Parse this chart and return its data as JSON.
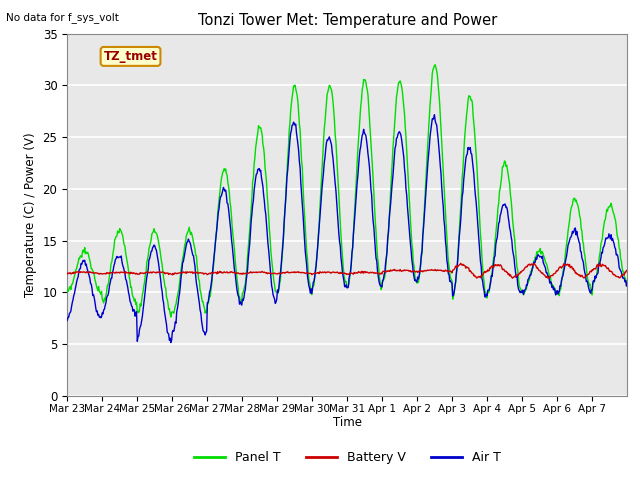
{
  "title": "Tonzi Tower Met: Temperature and Power",
  "xlabel": "Time",
  "ylabel": "Temperature (C) / Power (V)",
  "top_left_text": "No data for f_sys_volt",
  "legend_label_text": "TZ_tmet",
  "ylim": [
    0,
    35
  ],
  "yticks": [
    0,
    5,
    10,
    15,
    20,
    25,
    30,
    35
  ],
  "plot_bg_color": "#e8e8e8",
  "grid_color": "#ffffff",
  "line_green": "#00dd00",
  "line_red": "#cc0000",
  "line_blue": "#0000cc",
  "legend_box_color": "#ffffcc",
  "legend_box_edge": "#cc8800",
  "x_tick_labels": [
    "Mar 23",
    "Mar 24",
    "Mar 25",
    "Mar 26",
    "Mar 27",
    "Mar 28",
    "Mar 29",
    "Mar 30",
    "Mar 31",
    "Apr 1",
    "Apr 2",
    "Apr 3",
    "Apr 4",
    "Apr 5",
    "Apr 6",
    "Apr 7"
  ],
  "day_data": [
    [
      0,
      10,
      14,
      7.5,
      13.0
    ],
    [
      1,
      9,
      16,
      8.0,
      13.5
    ],
    [
      2,
      8,
      16,
      5.5,
      14.5
    ],
    [
      3,
      8,
      16,
      6.0,
      15.0
    ],
    [
      4,
      9,
      22,
      9.0,
      20.0
    ],
    [
      5,
      10,
      26,
      9.0,
      22.0
    ],
    [
      6,
      10,
      30,
      10.0,
      26.5
    ],
    [
      7,
      10.5,
      30,
      10.5,
      25.0
    ],
    [
      8,
      10.5,
      30.5,
      10.5,
      25.5
    ],
    [
      9,
      11,
      30.5,
      11.0,
      25.5
    ],
    [
      10,
      11,
      32,
      11.0,
      27.0
    ],
    [
      11,
      9.5,
      29,
      9.5,
      24.0
    ],
    [
      12,
      10,
      22.5,
      10.0,
      18.5
    ],
    [
      13,
      10,
      14,
      10.0,
      13.5
    ],
    [
      14,
      10,
      19,
      10.0,
      16.0
    ],
    [
      15,
      11,
      18.5,
      11.0,
      15.5
    ]
  ],
  "n_days": 16,
  "n_per_day": 48
}
